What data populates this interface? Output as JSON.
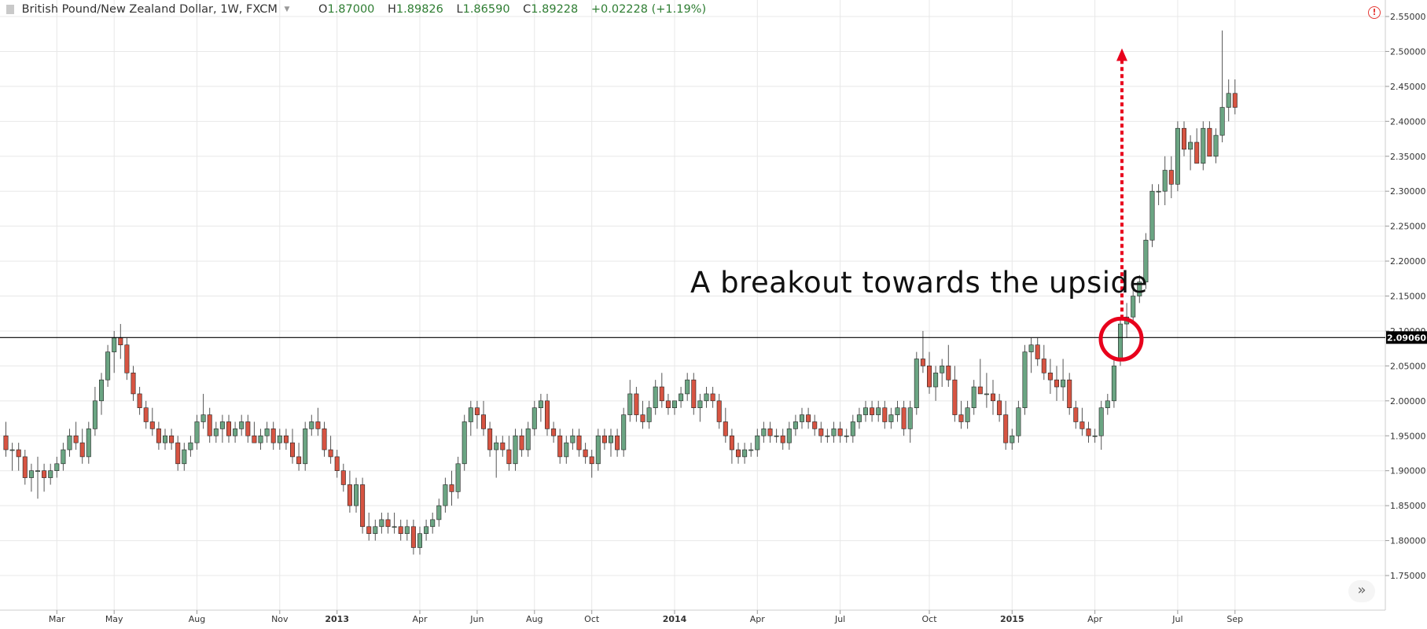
{
  "header": {
    "symbol": "British Pound/New Zealand Dollar, 1W, FXCM",
    "open_label": "O",
    "open": "1.87000",
    "high_label": "H",
    "high": "1.89826",
    "low_label": "L",
    "low": "1.86590",
    "close_label": "C",
    "close": "1.89228",
    "change": "+0.02228 (+1.19%)"
  },
  "annotation": "A breakout towards the upside",
  "colors": {
    "up": "#6ba583",
    "down": "#d75442",
    "outline": "#222222",
    "grid": "#e8e8e8",
    "marker": "#e8001c"
  },
  "chart_data": {
    "type": "candlestick",
    "ylim": [
      1.73,
      2.56
    ],
    "y_ticks": [
      "2.55000",
      "2.50000",
      "2.45000",
      "2.40000",
      "2.35000",
      "2.30000",
      "2.25000",
      "2.20000",
      "2.15000",
      "2.10000",
      "2.05000",
      "2.00000",
      "1.95000",
      "1.90000",
      "1.85000",
      "1.80000",
      "1.75000"
    ],
    "x_ticks": [
      {
        "label": "Mar",
        "index": 8,
        "bold": false
      },
      {
        "label": "May",
        "index": 17,
        "bold": false
      },
      {
        "label": "Aug",
        "index": 30,
        "bold": false
      },
      {
        "label": "Nov",
        "index": 43,
        "bold": false
      },
      {
        "label": "2013",
        "index": 52,
        "bold": true
      },
      {
        "label": "Apr",
        "index": 65,
        "bold": false
      },
      {
        "label": "Jun",
        "index": 74,
        "bold": false
      },
      {
        "label": "Aug",
        "index": 83,
        "bold": false
      },
      {
        "label": "Oct",
        "index": 92,
        "bold": false
      },
      {
        "label": "2014",
        "index": 105,
        "bold": true
      },
      {
        "label": "Apr",
        "index": 118,
        "bold": false
      },
      {
        "label": "Jul",
        "index": 131,
        "bold": false
      },
      {
        "label": "Oct",
        "index": 145,
        "bold": false
      },
      {
        "label": "2015",
        "index": 158,
        "bold": true
      },
      {
        "label": "Apr",
        "index": 171,
        "bold": false
      },
      {
        "label": "Jul",
        "index": 184,
        "bold": false
      },
      {
        "label": "Sep",
        "index": 193,
        "bold": false
      }
    ],
    "resistance_level": 2.0906,
    "resistance_label": "2.09060",
    "breakout_index": 175,
    "target_price": 2.5,
    "candles": [
      [
        1.95,
        1.97,
        1.92,
        1.93
      ],
      [
        1.93,
        1.94,
        1.9,
        1.93
      ],
      [
        1.93,
        1.94,
        1.9,
        1.92
      ],
      [
        1.92,
        1.93,
        1.88,
        1.89
      ],
      [
        1.89,
        1.91,
        1.87,
        1.9
      ],
      [
        1.9,
        1.92,
        1.86,
        1.9
      ],
      [
        1.9,
        1.91,
        1.87,
        1.89
      ],
      [
        1.89,
        1.91,
        1.88,
        1.9
      ],
      [
        1.9,
        1.92,
        1.89,
        1.91
      ],
      [
        1.91,
        1.94,
        1.9,
        1.93
      ],
      [
        1.93,
        1.96,
        1.92,
        1.95
      ],
      [
        1.95,
        1.97,
        1.93,
        1.94
      ],
      [
        1.94,
        1.96,
        1.91,
        1.92
      ],
      [
        1.92,
        1.97,
        1.91,
        1.96
      ],
      [
        1.96,
        2.02,
        1.95,
        2.0
      ],
      [
        2.0,
        2.04,
        1.98,
        2.03
      ],
      [
        2.03,
        2.08,
        2.02,
        2.07
      ],
      [
        2.07,
        2.1,
        2.04,
        2.09
      ],
      [
        2.09,
        2.11,
        2.06,
        2.08
      ],
      [
        2.08,
        2.09,
        2.03,
        2.04
      ],
      [
        2.04,
        2.05,
        2.0,
        2.01
      ],
      [
        2.01,
        2.02,
        1.98,
        1.99
      ],
      [
        1.99,
        2.0,
        1.96,
        1.97
      ],
      [
        1.97,
        1.99,
        1.95,
        1.96
      ],
      [
        1.96,
        1.97,
        1.93,
        1.94
      ],
      [
        1.94,
        1.96,
        1.93,
        1.95
      ],
      [
        1.95,
        1.96,
        1.93,
        1.94
      ],
      [
        1.94,
        1.95,
        1.9,
        1.91
      ],
      [
        1.91,
        1.94,
        1.9,
        1.93
      ],
      [
        1.93,
        1.95,
        1.92,
        1.94
      ],
      [
        1.94,
        1.98,
        1.93,
        1.97
      ],
      [
        1.97,
        2.01,
        1.96,
        1.98
      ],
      [
        1.98,
        1.99,
        1.94,
        1.95
      ],
      [
        1.95,
        1.97,
        1.94,
        1.96
      ],
      [
        1.96,
        1.98,
        1.94,
        1.97
      ],
      [
        1.97,
        1.98,
        1.94,
        1.95
      ],
      [
        1.95,
        1.97,
        1.94,
        1.96
      ],
      [
        1.96,
        1.98,
        1.95,
        1.97
      ],
      [
        1.97,
        1.98,
        1.94,
        1.95
      ],
      [
        1.95,
        1.97,
        1.94,
        1.94
      ],
      [
        1.94,
        1.96,
        1.93,
        1.95
      ],
      [
        1.95,
        1.97,
        1.94,
        1.96
      ],
      [
        1.96,
        1.97,
        1.93,
        1.94
      ],
      [
        1.94,
        1.96,
        1.93,
        1.95
      ],
      [
        1.95,
        1.96,
        1.93,
        1.94
      ],
      [
        1.94,
        1.96,
        1.91,
        1.92
      ],
      [
        1.92,
        1.94,
        1.9,
        1.91
      ],
      [
        1.91,
        1.97,
        1.9,
        1.96
      ],
      [
        1.96,
        1.98,
        1.95,
        1.97
      ],
      [
        1.97,
        1.99,
        1.95,
        1.96
      ],
      [
        1.96,
        1.97,
        1.92,
        1.93
      ],
      [
        1.93,
        1.95,
        1.91,
        1.92
      ],
      [
        1.92,
        1.93,
        1.89,
        1.9
      ],
      [
        1.9,
        1.91,
        1.87,
        1.88
      ],
      [
        1.88,
        1.9,
        1.84,
        1.85
      ],
      [
        1.85,
        1.89,
        1.84,
        1.88
      ],
      [
        1.88,
        1.89,
        1.81,
        1.82
      ],
      [
        1.82,
        1.84,
        1.8,
        1.81
      ],
      [
        1.81,
        1.83,
        1.8,
        1.82
      ],
      [
        1.82,
        1.84,
        1.81,
        1.83
      ],
      [
        1.83,
        1.84,
        1.81,
        1.82
      ],
      [
        1.82,
        1.84,
        1.81,
        1.82
      ],
      [
        1.82,
        1.83,
        1.8,
        1.81
      ],
      [
        1.81,
        1.83,
        1.8,
        1.82
      ],
      [
        1.82,
        1.83,
        1.78,
        1.79
      ],
      [
        1.79,
        1.82,
        1.78,
        1.81
      ],
      [
        1.81,
        1.83,
        1.8,
        1.82
      ],
      [
        1.82,
        1.84,
        1.81,
        1.83
      ],
      [
        1.83,
        1.86,
        1.82,
        1.85
      ],
      [
        1.85,
        1.89,
        1.84,
        1.88
      ],
      [
        1.88,
        1.9,
        1.85,
        1.87
      ],
      [
        1.87,
        1.92,
        1.86,
        1.91
      ],
      [
        1.91,
        1.98,
        1.9,
        1.97
      ],
      [
        1.97,
        2.0,
        1.95,
        1.99
      ],
      [
        1.99,
        2.0,
        1.96,
        1.98
      ],
      [
        1.98,
        2.0,
        1.95,
        1.96
      ],
      [
        1.96,
        1.97,
        1.92,
        1.93
      ],
      [
        1.93,
        1.95,
        1.89,
        1.94
      ],
      [
        1.94,
        1.95,
        1.92,
        1.93
      ],
      [
        1.93,
        1.95,
        1.9,
        1.91
      ],
      [
        1.91,
        1.96,
        1.9,
        1.95
      ],
      [
        1.95,
        1.96,
        1.92,
        1.93
      ],
      [
        1.93,
        1.97,
        1.92,
        1.96
      ],
      [
        1.96,
        2.0,
        1.95,
        1.99
      ],
      [
        1.99,
        2.01,
        1.97,
        2.0
      ],
      [
        2.0,
        2.01,
        1.95,
        1.96
      ],
      [
        1.96,
        1.97,
        1.94,
        1.95
      ],
      [
        1.95,
        1.96,
        1.91,
        1.92
      ],
      [
        1.92,
        1.95,
        1.91,
        1.94
      ],
      [
        1.94,
        1.96,
        1.93,
        1.95
      ],
      [
        1.95,
        1.96,
        1.92,
        1.93
      ],
      [
        1.93,
        1.94,
        1.91,
        1.92
      ],
      [
        1.92,
        1.93,
        1.89,
        1.91
      ],
      [
        1.91,
        1.96,
        1.9,
        1.95
      ],
      [
        1.95,
        1.96,
        1.93,
        1.94
      ],
      [
        1.94,
        1.96,
        1.92,
        1.95
      ],
      [
        1.95,
        1.96,
        1.92,
        1.93
      ],
      [
        1.93,
        1.99,
        1.92,
        1.98
      ],
      [
        1.98,
        2.03,
        1.97,
        2.01
      ],
      [
        2.01,
        2.02,
        1.97,
        1.98
      ],
      [
        1.98,
        2.0,
        1.96,
        1.97
      ],
      [
        1.97,
        2.0,
        1.96,
        1.99
      ],
      [
        1.99,
        2.03,
        1.98,
        2.02
      ],
      [
        2.02,
        2.04,
        1.99,
        2.0
      ],
      [
        2.0,
        2.01,
        1.98,
        1.99
      ],
      [
        1.99,
        2.0,
        1.98,
        2.0
      ],
      [
        2.0,
        2.02,
        1.99,
        2.01
      ],
      [
        2.01,
        2.04,
        2.0,
        2.03
      ],
      [
        2.03,
        2.04,
        1.98,
        1.99
      ],
      [
        1.99,
        2.01,
        1.97,
        2.0
      ],
      [
        2.0,
        2.02,
        1.99,
        2.01
      ],
      [
        2.01,
        2.02,
        1.99,
        2.0
      ],
      [
        2.0,
        2.01,
        1.96,
        1.97
      ],
      [
        1.97,
        1.99,
        1.94,
        1.95
      ],
      [
        1.95,
        1.96,
        1.91,
        1.93
      ],
      [
        1.93,
        1.94,
        1.91,
        1.92
      ],
      [
        1.92,
        1.94,
        1.91,
        1.93
      ],
      [
        1.93,
        1.94,
        1.92,
        1.93
      ],
      [
        1.93,
        1.96,
        1.92,
        1.95
      ],
      [
        1.95,
        1.97,
        1.94,
        1.96
      ],
      [
        1.96,
        1.97,
        1.94,
        1.95
      ],
      [
        1.95,
        1.96,
        1.94,
        1.95
      ],
      [
        1.95,
        1.96,
        1.93,
        1.94
      ],
      [
        1.94,
        1.97,
        1.93,
        1.96
      ],
      [
        1.96,
        1.98,
        1.95,
        1.97
      ],
      [
        1.97,
        1.99,
        1.96,
        1.98
      ],
      [
        1.98,
        1.99,
        1.96,
        1.97
      ],
      [
        1.97,
        1.98,
        1.95,
        1.96
      ],
      [
        1.96,
        1.97,
        1.94,
        1.95
      ],
      [
        1.95,
        1.96,
        1.94,
        1.95
      ],
      [
        1.95,
        1.97,
        1.94,
        1.96
      ],
      [
        1.96,
        1.97,
        1.94,
        1.95
      ],
      [
        1.95,
        1.96,
        1.94,
        1.95
      ],
      [
        1.95,
        1.98,
        1.94,
        1.97
      ],
      [
        1.97,
        1.99,
        1.96,
        1.98
      ],
      [
        1.98,
        2.0,
        1.97,
        1.99
      ],
      [
        1.99,
        2.0,
        1.97,
        1.98
      ],
      [
        1.98,
        2.0,
        1.97,
        1.99
      ],
      [
        1.99,
        2.0,
        1.96,
        1.97
      ],
      [
        1.97,
        1.99,
        1.96,
        1.98
      ],
      [
        1.98,
        2.0,
        1.97,
        1.99
      ],
      [
        1.99,
        2.0,
        1.95,
        1.96
      ],
      [
        1.96,
        2.0,
        1.94,
        1.99
      ],
      [
        1.99,
        2.07,
        1.98,
        2.06
      ],
      [
        2.06,
        2.1,
        2.04,
        2.05
      ],
      [
        2.05,
        2.07,
        2.01,
        2.02
      ],
      [
        2.02,
        2.05,
        2.0,
        2.04
      ],
      [
        2.04,
        2.06,
        2.02,
        2.05
      ],
      [
        2.05,
        2.08,
        2.02,
        2.03
      ],
      [
        2.03,
        2.05,
        1.97,
        1.98
      ],
      [
        1.98,
        2.0,
        1.96,
        1.97
      ],
      [
        1.97,
        2.0,
        1.96,
        1.99
      ],
      [
        1.99,
        2.03,
        1.98,
        2.02
      ],
      [
        2.02,
        2.06,
        2.01,
        2.01
      ],
      [
        2.01,
        2.04,
        1.99,
        2.01
      ],
      [
        2.01,
        2.03,
        1.98,
        2.0
      ],
      [
        2.0,
        2.01,
        1.97,
        1.98
      ],
      [
        1.98,
        2.0,
        1.93,
        1.94
      ],
      [
        1.94,
        1.96,
        1.93,
        1.95
      ],
      [
        1.95,
        2.0,
        1.94,
        1.99
      ],
      [
        1.99,
        2.08,
        1.98,
        2.07
      ],
      [
        2.07,
        2.09,
        2.04,
        2.08
      ],
      [
        2.08,
        2.09,
        2.05,
        2.06
      ],
      [
        2.06,
        2.08,
        2.03,
        2.04
      ],
      [
        2.04,
        2.06,
        2.01,
        2.03
      ],
      [
        2.03,
        2.05,
        2.0,
        2.02
      ],
      [
        2.02,
        2.06,
        2.0,
        2.03
      ],
      [
        2.03,
        2.04,
        1.98,
        1.99
      ],
      [
        1.99,
        2.0,
        1.96,
        1.97
      ],
      [
        1.97,
        1.99,
        1.95,
        1.96
      ],
      [
        1.96,
        1.97,
        1.94,
        1.95
      ],
      [
        1.95,
        1.96,
        1.94,
        1.95
      ],
      [
        1.95,
        2.0,
        1.93,
        1.99
      ],
      [
        1.99,
        2.01,
        1.98,
        2.0
      ],
      [
        2.0,
        2.06,
        1.99,
        2.05
      ],
      [
        2.06,
        2.12,
        2.05,
        2.11
      ],
      [
        2.11,
        2.14,
        2.09,
        2.12
      ],
      [
        2.12,
        2.16,
        2.11,
        2.15
      ],
      [
        2.15,
        2.18,
        2.14,
        2.17
      ],
      [
        2.17,
        2.24,
        2.16,
        2.23
      ],
      [
        2.23,
        2.31,
        2.22,
        2.3
      ],
      [
        2.3,
        2.31,
        2.28,
        2.3
      ],
      [
        2.3,
        2.35,
        2.28,
        2.33
      ],
      [
        2.33,
        2.35,
        2.29,
        2.31
      ],
      [
        2.31,
        2.4,
        2.3,
        2.39
      ],
      [
        2.39,
        2.4,
        2.35,
        2.36
      ],
      [
        2.36,
        2.38,
        2.33,
        2.37
      ],
      [
        2.37,
        2.39,
        2.34,
        2.34
      ],
      [
        2.34,
        2.4,
        2.33,
        2.39
      ],
      [
        2.39,
        2.4,
        2.35,
        2.35
      ],
      [
        2.35,
        2.39,
        2.34,
        2.38
      ],
      [
        2.38,
        2.53,
        2.37,
        2.42
      ],
      [
        2.42,
        2.46,
        2.4,
        2.44
      ],
      [
        2.44,
        2.46,
        2.41,
        2.42
      ]
    ]
  }
}
